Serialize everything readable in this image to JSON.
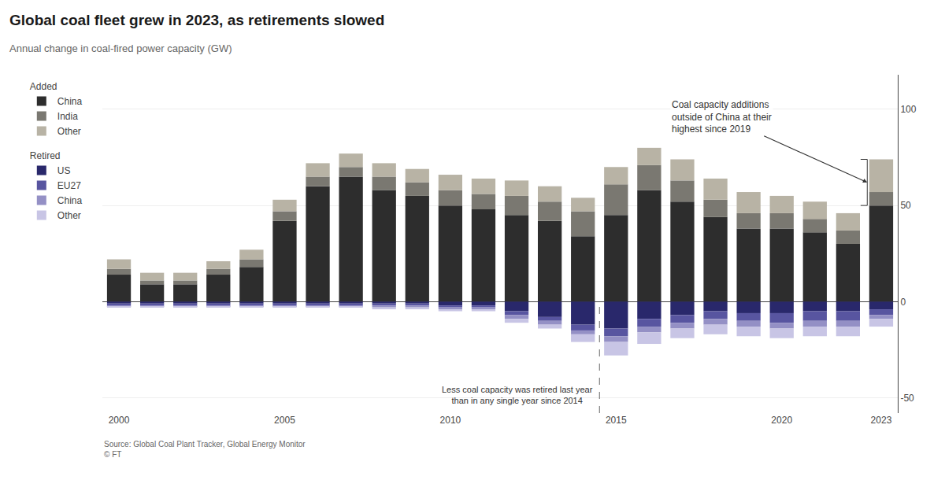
{
  "chart_data": {
    "type": "bar",
    "stacked": true,
    "title": "Global coal fleet grew in 2023, as retirements slowed",
    "subtitle": "Annual change in coal-fired power capacity (GW)",
    "source": "Source: Global Coal Plant Tracker, Global Energy Monitor\n© FT",
    "categories": [
      "2000",
      null,
      null,
      null,
      null,
      "2005",
      null,
      null,
      null,
      null,
      "2010",
      null,
      null,
      null,
      null,
      "2015",
      null,
      null,
      null,
      null,
      "2020",
      null,
      null,
      "2023"
    ],
    "series": [
      {
        "name": "China",
        "group": "Added",
        "color": "#2d2d2d",
        "values": [
          14,
          9,
          9,
          14,
          18,
          42,
          60,
          65,
          58,
          55,
          50,
          48,
          45,
          42,
          34,
          45,
          58,
          52,
          44,
          38,
          38,
          36,
          30,
          50
        ]
      },
      {
        "name": "India",
        "group": "Added",
        "color": "#7a7871",
        "values": [
          3,
          2,
          2,
          3,
          4,
          5,
          5,
          5,
          7,
          7,
          8,
          8,
          10,
          10,
          13,
          16,
          13,
          11,
          9,
          8,
          8,
          7,
          7,
          7
        ]
      },
      {
        "name": "Other",
        "group": "Added",
        "color": "#b8b3a5",
        "values": [
          5,
          4,
          4,
          4,
          5,
          6,
          7,
          7,
          7,
          7,
          8,
          8,
          8,
          8,
          7,
          9,
          9,
          11,
          11,
          11,
          9,
          9,
          9,
          17
        ]
      },
      {
        "name": "US",
        "group": "Retired",
        "color": "#29286b",
        "values": [
          -1,
          -1,
          -1,
          -1,
          -1,
          -1,
          -1,
          -1,
          -1,
          -1,
          -2,
          -2,
          -5,
          -8,
          -12,
          -14,
          -9,
          -7,
          -5,
          -6,
          -6,
          -5,
          -5,
          -4
        ]
      },
      {
        "name": "EU27",
        "group": "Retired",
        "color": "#5855a0",
        "values": [
          -1,
          -1,
          -1,
          -1,
          -1,
          -1,
          -1,
          -1,
          -1,
          -1,
          -1,
          -1,
          -2,
          -2,
          -3,
          -4,
          -4,
          -4,
          -4,
          -4,
          -5,
          -5,
          -5,
          -3
        ]
      },
      {
        "name": "China",
        "group": "Retired",
        "color": "#9490c5",
        "values": [
          -0.5,
          -0.5,
          -0.5,
          -0.5,
          -0.5,
          -0.5,
          -0.5,
          -0.5,
          -1,
          -1,
          -1,
          -1,
          -2,
          -2,
          -2,
          -3,
          -3,
          -3,
          -3,
          -3,
          -3,
          -3,
          -3,
          -2
        ]
      },
      {
        "name": "Other",
        "group": "Retired",
        "color": "#c8c5e5",
        "values": [
          -0.5,
          -0.5,
          -0.5,
          -0.5,
          -0.5,
          -0.5,
          -0.5,
          -0.5,
          -1,
          -1,
          -1,
          -1,
          -2,
          -2,
          -4,
          -7,
          -6,
          -5,
          -5,
          -5,
          -5,
          -5,
          -5,
          -4
        ]
      }
    ],
    "annotations": [
      {
        "text": "Coal capacity additions\noutside of China at their\nhighest since 2019",
        "x": 23
      },
      {
        "text": "Less coal capacity was retired last year\nthan in any single year since 2014",
        "x": 14
      }
    ],
    "ylim": [
      -58,
      118
    ],
    "yticks": [
      -50,
      0,
      50,
      100
    ],
    "grid": true,
    "legend": "upper left"
  }
}
